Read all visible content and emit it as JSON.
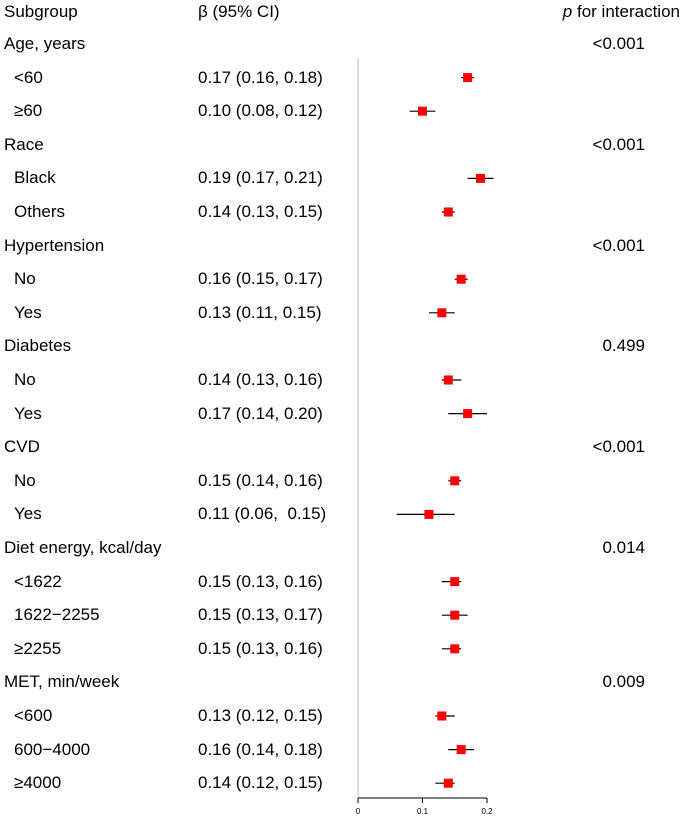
{
  "header": {
    "subgroup": "Subgroup",
    "beta": "β (95% CI)",
    "p_italic": "p",
    "p_rest": " for interaction"
  },
  "chart_data": {
    "type": "forest",
    "x_ticks": [
      "0",
      "0.1",
      "0.2"
    ],
    "xlim": [
      0,
      0.2
    ],
    "marker_color": "#ff0000",
    "rows": [
      {
        "kind": "group",
        "label": "Age, years",
        "p": "<0.001"
      },
      {
        "kind": "sub",
        "label": "<60",
        "ci_text": "0.17 (0.16, 0.18)",
        "est": 0.17,
        "lo": 0.16,
        "hi": 0.18
      },
      {
        "kind": "sub",
        "label": "≥60",
        "ci_text": "0.10 (0.08, 0.12)",
        "est": 0.1,
        "lo": 0.08,
        "hi": 0.12
      },
      {
        "kind": "group",
        "label": "Race",
        "p": "<0.001"
      },
      {
        "kind": "sub",
        "label": "Black",
        "ci_text": "0.19 (0.17, 0.21)",
        "est": 0.19,
        "lo": 0.17,
        "hi": 0.21
      },
      {
        "kind": "sub",
        "label": "Others",
        "ci_text": "0.14 (0.13, 0.15)",
        "est": 0.14,
        "lo": 0.13,
        "hi": 0.15
      },
      {
        "kind": "group",
        "label": "Hypertension",
        "p": "<0.001"
      },
      {
        "kind": "sub",
        "label": "No",
        "ci_text": "0.16 (0.15, 0.17)",
        "est": 0.16,
        "lo": 0.15,
        "hi": 0.17
      },
      {
        "kind": "sub",
        "label": "Yes",
        "ci_text": "0.13 (0.11, 0.15)",
        "est": 0.13,
        "lo": 0.11,
        "hi": 0.15
      },
      {
        "kind": "group",
        "label": "Diabetes",
        "p": "0.499"
      },
      {
        "kind": "sub",
        "label": "No",
        "ci_text": "0.14 (0.13, 0.16)",
        "est": 0.14,
        "lo": 0.13,
        "hi": 0.16
      },
      {
        "kind": "sub",
        "label": "Yes",
        "ci_text": "0.17 (0.14, 0.20)",
        "est": 0.17,
        "lo": 0.14,
        "hi": 0.2
      },
      {
        "kind": "group",
        "label": "CVD",
        "p": "<0.001"
      },
      {
        "kind": "sub",
        "label": "No",
        "ci_text": "0.15 (0.14, 0.16)",
        "est": 0.15,
        "lo": 0.14,
        "hi": 0.16
      },
      {
        "kind": "sub",
        "label": "Yes",
        "ci_text": "0.11 (0.06,  0.15)",
        "est": 0.11,
        "lo": 0.06,
        "hi": 0.15
      },
      {
        "kind": "group",
        "label": "Diet energy, kcal/day",
        "p": "0.014"
      },
      {
        "kind": "sub",
        "label": "<1622",
        "ci_text": "0.15 (0.13, 0.16)",
        "est": 0.15,
        "lo": 0.13,
        "hi": 0.16
      },
      {
        "kind": "sub",
        "label": "1622−2255",
        "ci_text": "0.15 (0.13, 0.17)",
        "est": 0.15,
        "lo": 0.13,
        "hi": 0.17
      },
      {
        "kind": "sub",
        "label": "≥2255",
        "ci_text": "0.15 (0.13, 0.16)",
        "est": 0.15,
        "lo": 0.13,
        "hi": 0.16
      },
      {
        "kind": "group",
        "label": "MET, min/week",
        "p": "0.009"
      },
      {
        "kind": "sub",
        "label": "<600",
        "ci_text": "0.13 (0.12, 0.15)",
        "est": 0.13,
        "lo": 0.12,
        "hi": 0.15
      },
      {
        "kind": "sub",
        "label": "600−4000",
        "ci_text": "0.16 (0.14, 0.18)",
        "est": 0.16,
        "lo": 0.14,
        "hi": 0.18
      },
      {
        "kind": "sub",
        "label": "≥4000",
        "ci_text": "0.14 (0.12, 0.15)",
        "est": 0.14,
        "lo": 0.12,
        "hi": 0.15
      }
    ]
  }
}
